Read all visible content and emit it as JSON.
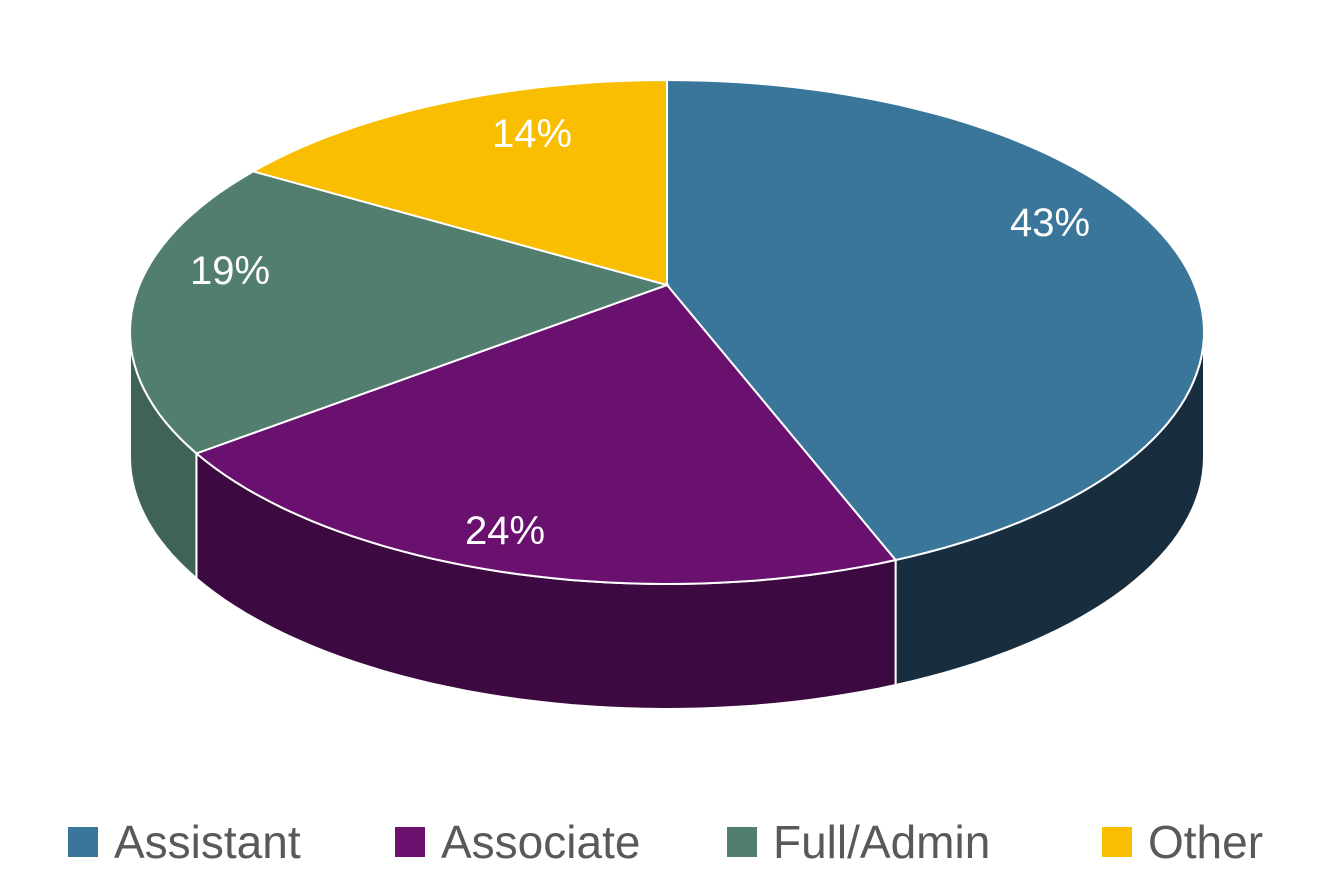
{
  "chart_data": {
    "type": "pie",
    "style": "3d",
    "categories": [
      "Assistant",
      "Associate",
      "Full/Admin",
      "Other"
    ],
    "values": [
      43,
      24,
      19,
      14
    ],
    "data_labels": [
      "43%",
      "24%",
      "19%",
      "14%"
    ],
    "colors": [
      "#3A7699",
      "#6A1170",
      "#527E6F",
      "#F9BE00"
    ],
    "side_colors": [
      "#182D3E",
      "#3C0A40",
      "#3F6457",
      "#B08600"
    ],
    "legend_position": "bottom",
    "title": ""
  }
}
